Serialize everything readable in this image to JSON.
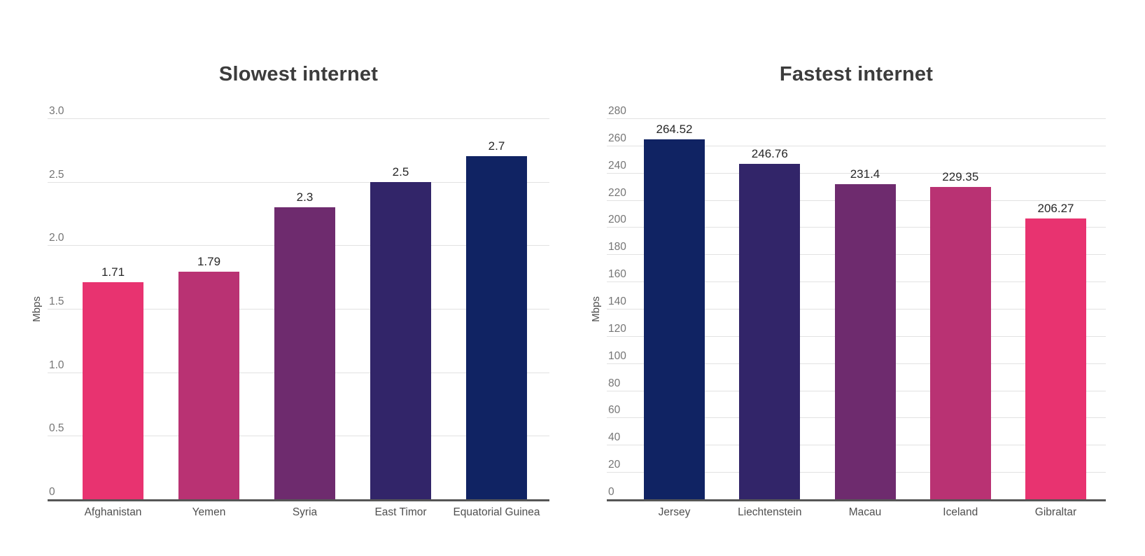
{
  "theme": {
    "background": "#ffffff",
    "title_color": "#3c3c3c",
    "tick_color": "#757575",
    "category_color": "#4f4f4f",
    "value_label_color": "#272727",
    "grid_color": "#e2e2e2",
    "axis_color": "#565656",
    "unit_label_color": "#4f4f4f"
  },
  "chart_data": [
    {
      "id": "slowest-internet",
      "type": "bar",
      "title": "Slowest internet",
      "xlabel": "",
      "ylabel": "Mbps",
      "categories": [
        "Afghanistan",
        "Yemen",
        "Syria",
        "East Timor",
        "Equatorial Guinea"
      ],
      "values": [
        1.71,
        1.79,
        2.3,
        2.5,
        2.7
      ],
      "value_labels": [
        "1.71",
        "1.79",
        "2.3",
        "2.5",
        "2.7"
      ],
      "bar_colors": [
        "#E83370",
        "#B93273",
        "#6E2B6E",
        "#322569",
        "#102363"
      ],
      "ylim": [
        0,
        3
      ],
      "yticks": [
        "0",
        "0.5",
        "1.0",
        "1.5",
        "2.0",
        "2.5",
        "3.0"
      ],
      "grid": true,
      "legend": "none"
    },
    {
      "id": "fastest-internet",
      "type": "bar",
      "title": "Fastest internet",
      "xlabel": "",
      "ylabel": "Mbps",
      "categories": [
        "Jersey",
        "Liechtenstein",
        "Macau",
        "Iceland",
        "Gibraltar"
      ],
      "values": [
        264.52,
        246.76,
        231.4,
        229.35,
        206.27
      ],
      "value_labels": [
        "264.52",
        "246.76",
        "231.4",
        "229.35",
        "206.27"
      ],
      "bar_colors": [
        "#102363",
        "#322569",
        "#6E2B6E",
        "#B93273",
        "#E83370"
      ],
      "ylim": [
        0,
        280
      ],
      "yticks": [
        "0",
        "20",
        "40",
        "60",
        "80",
        "100",
        "120",
        "140",
        "160",
        "180",
        "200",
        "220",
        "240",
        "260",
        "280"
      ],
      "grid": true,
      "legend": "none"
    }
  ]
}
